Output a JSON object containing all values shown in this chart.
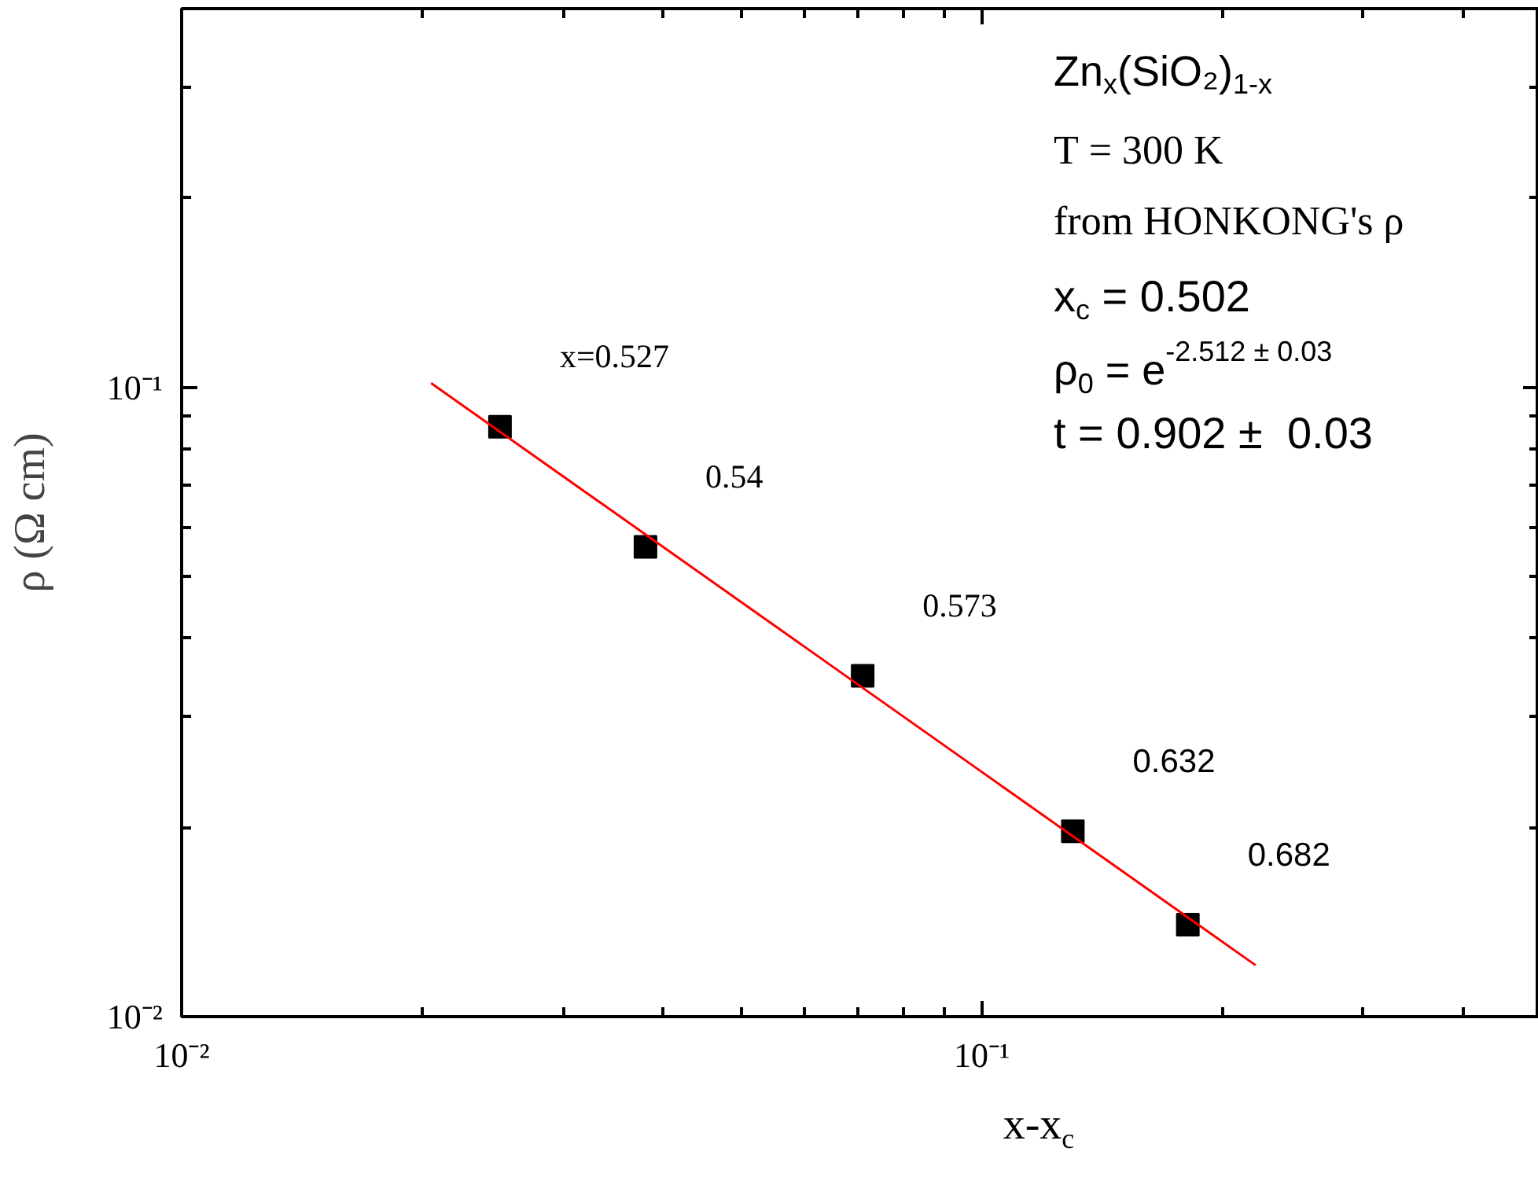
{
  "chart_data": {
    "type": "scatter",
    "xlabel": "x-x$_{c}$",
    "ylabel": "ρ (Ω cm)",
    "log": "xy",
    "marker": "square",
    "xlim": [
      0.01,
      0.497
    ],
    "ylim": [
      0.01,
      0.4
    ],
    "xticks": [
      {
        "value": 0.01,
        "label": "10⁻²"
      },
      {
        "value": 0.02,
        "label": null
      },
      {
        "value": 0.03,
        "label": null
      },
      {
        "value": 0.04,
        "label": null
      },
      {
        "value": 0.05,
        "label": null
      },
      {
        "value": 0.06,
        "label": null
      },
      {
        "value": 0.07,
        "label": null
      },
      {
        "value": 0.08,
        "label": null
      },
      {
        "value": 0.09,
        "label": null
      },
      {
        "value": 0.1,
        "label": "10⁻¹"
      },
      {
        "value": 0.2,
        "label": null
      },
      {
        "value": 0.3,
        "label": null
      },
      {
        "value": 0.4,
        "label": null
      }
    ],
    "yticks": [
      {
        "value": 0.01,
        "label": "10⁻²"
      },
      {
        "value": 0.02,
        "label": null
      },
      {
        "value": 0.03,
        "label": null
      },
      {
        "value": 0.04,
        "label": null
      },
      {
        "value": 0.05,
        "label": null
      },
      {
        "value": 0.06,
        "label": null
      },
      {
        "value": 0.07,
        "label": null
      },
      {
        "value": 0.08,
        "label": null
      },
      {
        "value": 0.09,
        "label": null
      },
      {
        "value": 0.1,
        "label": "10⁻¹"
      },
      {
        "value": 0.2,
        "label": null
      },
      {
        "value": 0.3,
        "label": null
      }
    ],
    "series": [
      {
        "color": "#000000",
        "x": [
          0.025,
          0.038,
          0.071,
          0.13,
          0.181
        ],
        "values": [
          0.0866,
          0.0558,
          0.0348,
          0.0197,
          0.014
        ]
      },
      {
        "type": "line",
        "color": "#ff0000",
        "line_style": "solid",
        "marker": "none",
        "x": [
          0.0205,
          0.22
        ],
        "values": [
          0.1016,
          0.01207
        ]
      }
    ],
    "annotations": [
      {
        "text": "x=0.527",
        "x": 0.025,
        "y": 0.0866
      },
      {
        "text": "0.54",
        "x": 0.038,
        "y": 0.0558
      },
      {
        "text": "0.573",
        "x": 0.071,
        "y": 0.0348
      },
      {
        "text": "0.632",
        "x": 0.13,
        "y": 0.0197
      },
      {
        "text": "0.682",
        "x": 0.181,
        "y": 0.014
      },
      "Zn$_{x}$(SiO₂)$_{1-x}$",
      "T = 300 K",
      "from HONKONG's ρ",
      "x$_{c}$ = 0.502",
      "ρ$_{0}$ = e$^{-2.512 ± 0.03}$",
      "t = 0.902 ±  0.03"
    ]
  }
}
